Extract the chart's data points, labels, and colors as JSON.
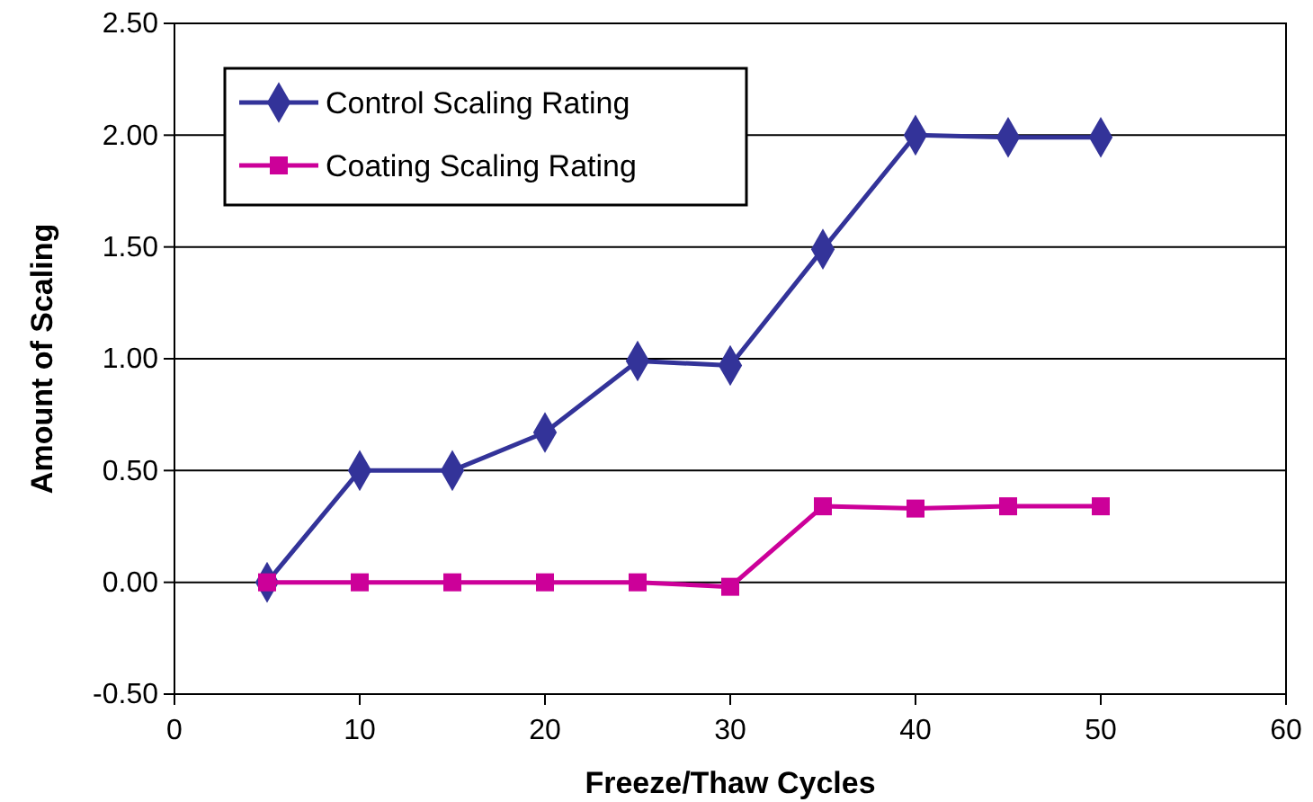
{
  "chart_data": {
    "type": "line",
    "xlabel": "Freeze/Thaw Cycles",
    "ylabel": "Amount of Scaling",
    "x": [
      5,
      10,
      15,
      20,
      25,
      30,
      35,
      40,
      45,
      50
    ],
    "series": [
      {
        "name": "Control Scaling Rating",
        "color": "#333399",
        "marker": "diamond",
        "values": [
          0,
          0.5,
          0.5,
          0.67,
          0.99,
          0.97,
          1.49,
          2.0,
          1.99,
          1.99
        ]
      },
      {
        "name": "Coating Scaling Rating",
        "color": "#cc0099",
        "marker": "square",
        "values": [
          0,
          0,
          0,
          0,
          0,
          -0.02,
          0.34,
          0.33,
          0.34,
          0.34
        ]
      }
    ],
    "xlim": [
      0,
      60
    ],
    "xticks": [
      0,
      10,
      20,
      30,
      40,
      50,
      60
    ],
    "ylim": [
      -0.5,
      2.5
    ],
    "yticks": [
      {
        "value": -0.5,
        "label": "-0.50"
      },
      {
        "value": 0,
        "label": "0.00"
      },
      {
        "value": 0.5,
        "label": "0.50"
      },
      {
        "value": 1,
        "label": "1.00"
      },
      {
        "value": 1.5,
        "label": "1.50"
      },
      {
        "value": 2,
        "label": "2.00"
      },
      {
        "value": 2.5,
        "label": "2.50"
      }
    ],
    "grid": "y",
    "legend": "top left",
    "line_style": "solid"
  }
}
